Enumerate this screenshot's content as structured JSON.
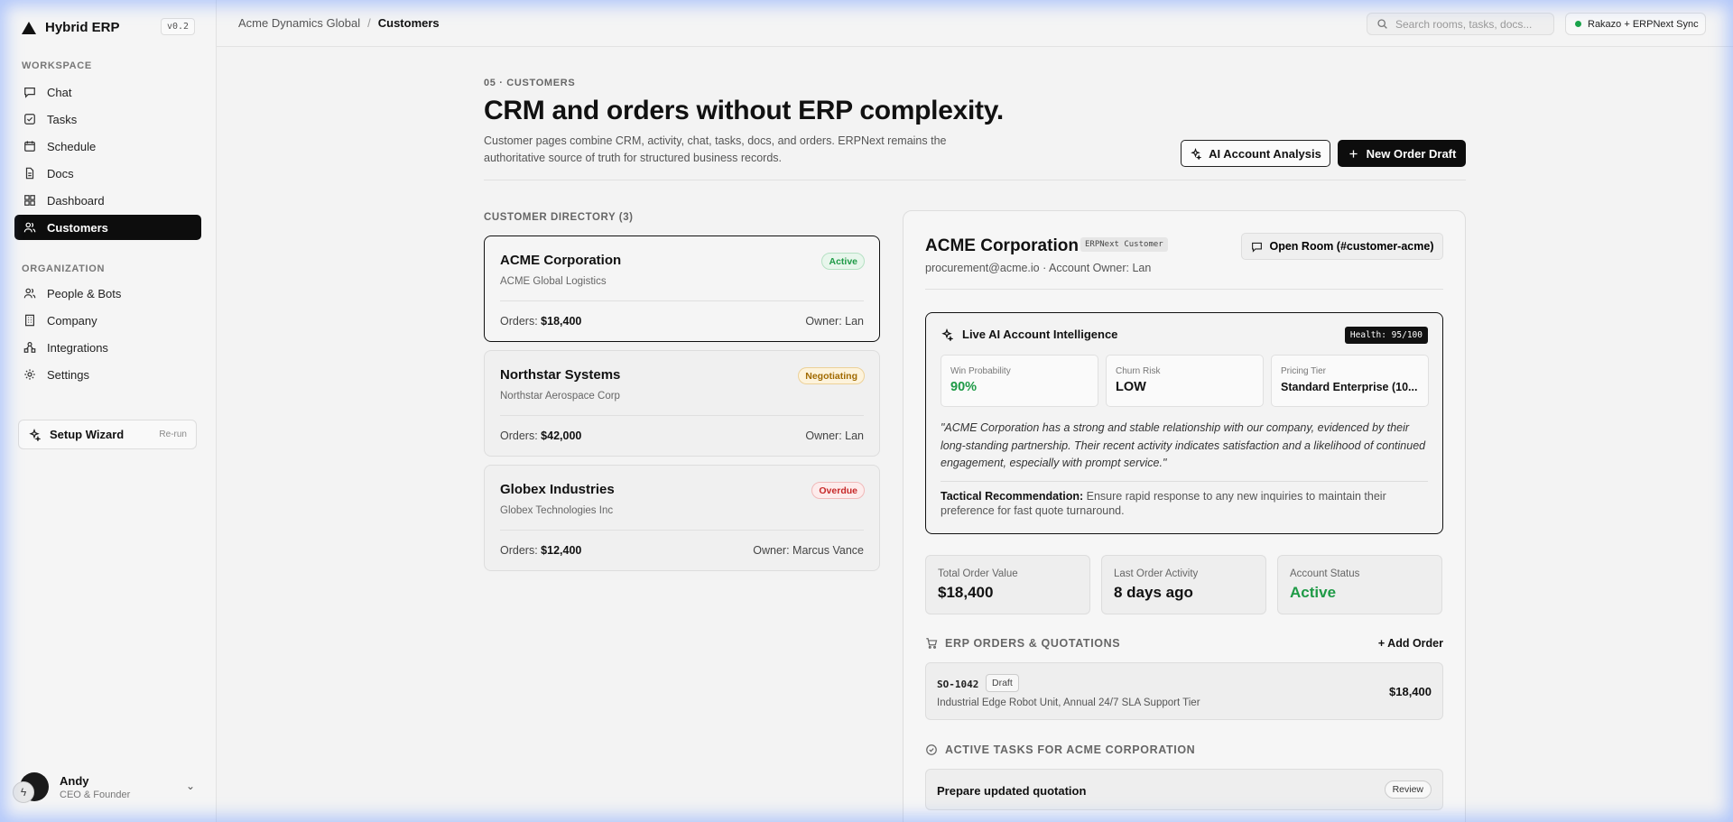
{
  "app": {
    "name": "Hybrid ERP",
    "version": "v0.2"
  },
  "sidebar": {
    "workspace_label": "WORKSPACE",
    "workspace_items": [
      {
        "label": "Chat",
        "icon": "chat-icon"
      },
      {
        "label": "Tasks",
        "icon": "tasks-icon"
      },
      {
        "label": "Schedule",
        "icon": "calendar-icon"
      },
      {
        "label": "Docs",
        "icon": "document-icon"
      },
      {
        "label": "Dashboard",
        "icon": "dashboard-icon"
      },
      {
        "label": "Customers",
        "icon": "users-icon",
        "active": true
      }
    ],
    "org_label": "ORGANIZATION",
    "org_items": [
      {
        "label": "People & Bots",
        "icon": "people-icon"
      },
      {
        "label": "Company",
        "icon": "building-icon"
      },
      {
        "label": "Integrations",
        "icon": "integrations-icon"
      },
      {
        "label": "Settings",
        "icon": "gear-icon"
      }
    ],
    "wizard": {
      "label": "Setup Wizard",
      "action": "Re-run"
    },
    "user": {
      "name": "Andy",
      "role": "CEO & Founder"
    }
  },
  "topbar": {
    "breadcrumb_root": "Acme Dynamics Global",
    "breadcrumb_sep": "/",
    "breadcrumb_current": "Customers",
    "search_placeholder": "Search rooms, tasks, docs...",
    "sync_label": "Rakazo + ERPNext Sync"
  },
  "header": {
    "eyebrow": "05 · CUSTOMERS",
    "title": "CRM and orders without ERP complexity.",
    "description": "Customer pages combine CRM, activity, chat, tasks, docs, and orders. ERPNext remains the authoritative source of truth for structured business records.",
    "ai_button": "AI Account Analysis",
    "new_order_button": "New Order Draft"
  },
  "directory": {
    "label": "CUSTOMER DIRECTORY (3)",
    "customers": [
      {
        "name": "ACME Corporation",
        "company": "ACME Global Logistics",
        "status": "Active",
        "orders_label": "Orders:",
        "orders": "$18,400",
        "owner": "Owner: Lan"
      },
      {
        "name": "Northstar Systems",
        "company": "Northstar Aerospace Corp",
        "status": "Negotiating",
        "orders_label": "Orders:",
        "orders": "$42,000",
        "owner": "Owner: Lan"
      },
      {
        "name": "Globex Industries",
        "company": "Globex Technologies Inc",
        "status": "Overdue",
        "orders_label": "Orders:",
        "orders": "$12,400",
        "owner": "Owner: Marcus Vance"
      }
    ]
  },
  "detail": {
    "name": "ACME Corporation",
    "tag": "ERPNext Customer",
    "subtitle": "procurement@acme.io · Account Owner: Lan",
    "open_room": "Open Room (#customer-acme)",
    "intel": {
      "title": "Live AI Account Intelligence",
      "health": "Health: 95/100",
      "metrics": [
        {
          "label": "Win Probability",
          "value": "90%"
        },
        {
          "label": "Churn Risk",
          "value": "LOW"
        },
        {
          "label": "Pricing Tier",
          "value": "Standard Enterprise (10..."
        }
      ],
      "quote": "\"ACME Corporation has a strong and stable relationship with our company, evidenced by their long-standing partnership. Their recent activity indicates satisfaction and a likelihood of continued engagement, especially with prompt service.\"",
      "tactic_label": "Tactical Recommendation:",
      "tactic_text": " Ensure rapid response to any new inquiries to maintain their preference for fast quote turnaround."
    },
    "stats": [
      {
        "label": "Total Order Value",
        "value": "$18,400"
      },
      {
        "label": "Last Order Activity",
        "value": "8 days ago"
      },
      {
        "label": "Account Status",
        "value": "Active"
      }
    ],
    "orders_heading": "ERP ORDERS & QUOTATIONS",
    "add_order": "+ Add Order",
    "order": {
      "id": "SO-1042",
      "status": "Draft",
      "description": "Industrial Edge Robot Unit, Annual 24/7 SLA Support Tier",
      "amount": "$18,400"
    },
    "tasks_heading": "ACTIVE TASKS FOR ACME CORPORATION",
    "task": {
      "title": "Prepare updated quotation",
      "action": "Review"
    }
  },
  "colors": {
    "accent_dark": "#0d0d0d",
    "success": "#1e9a46",
    "warning": "#a16a00",
    "danger": "#c62828"
  }
}
